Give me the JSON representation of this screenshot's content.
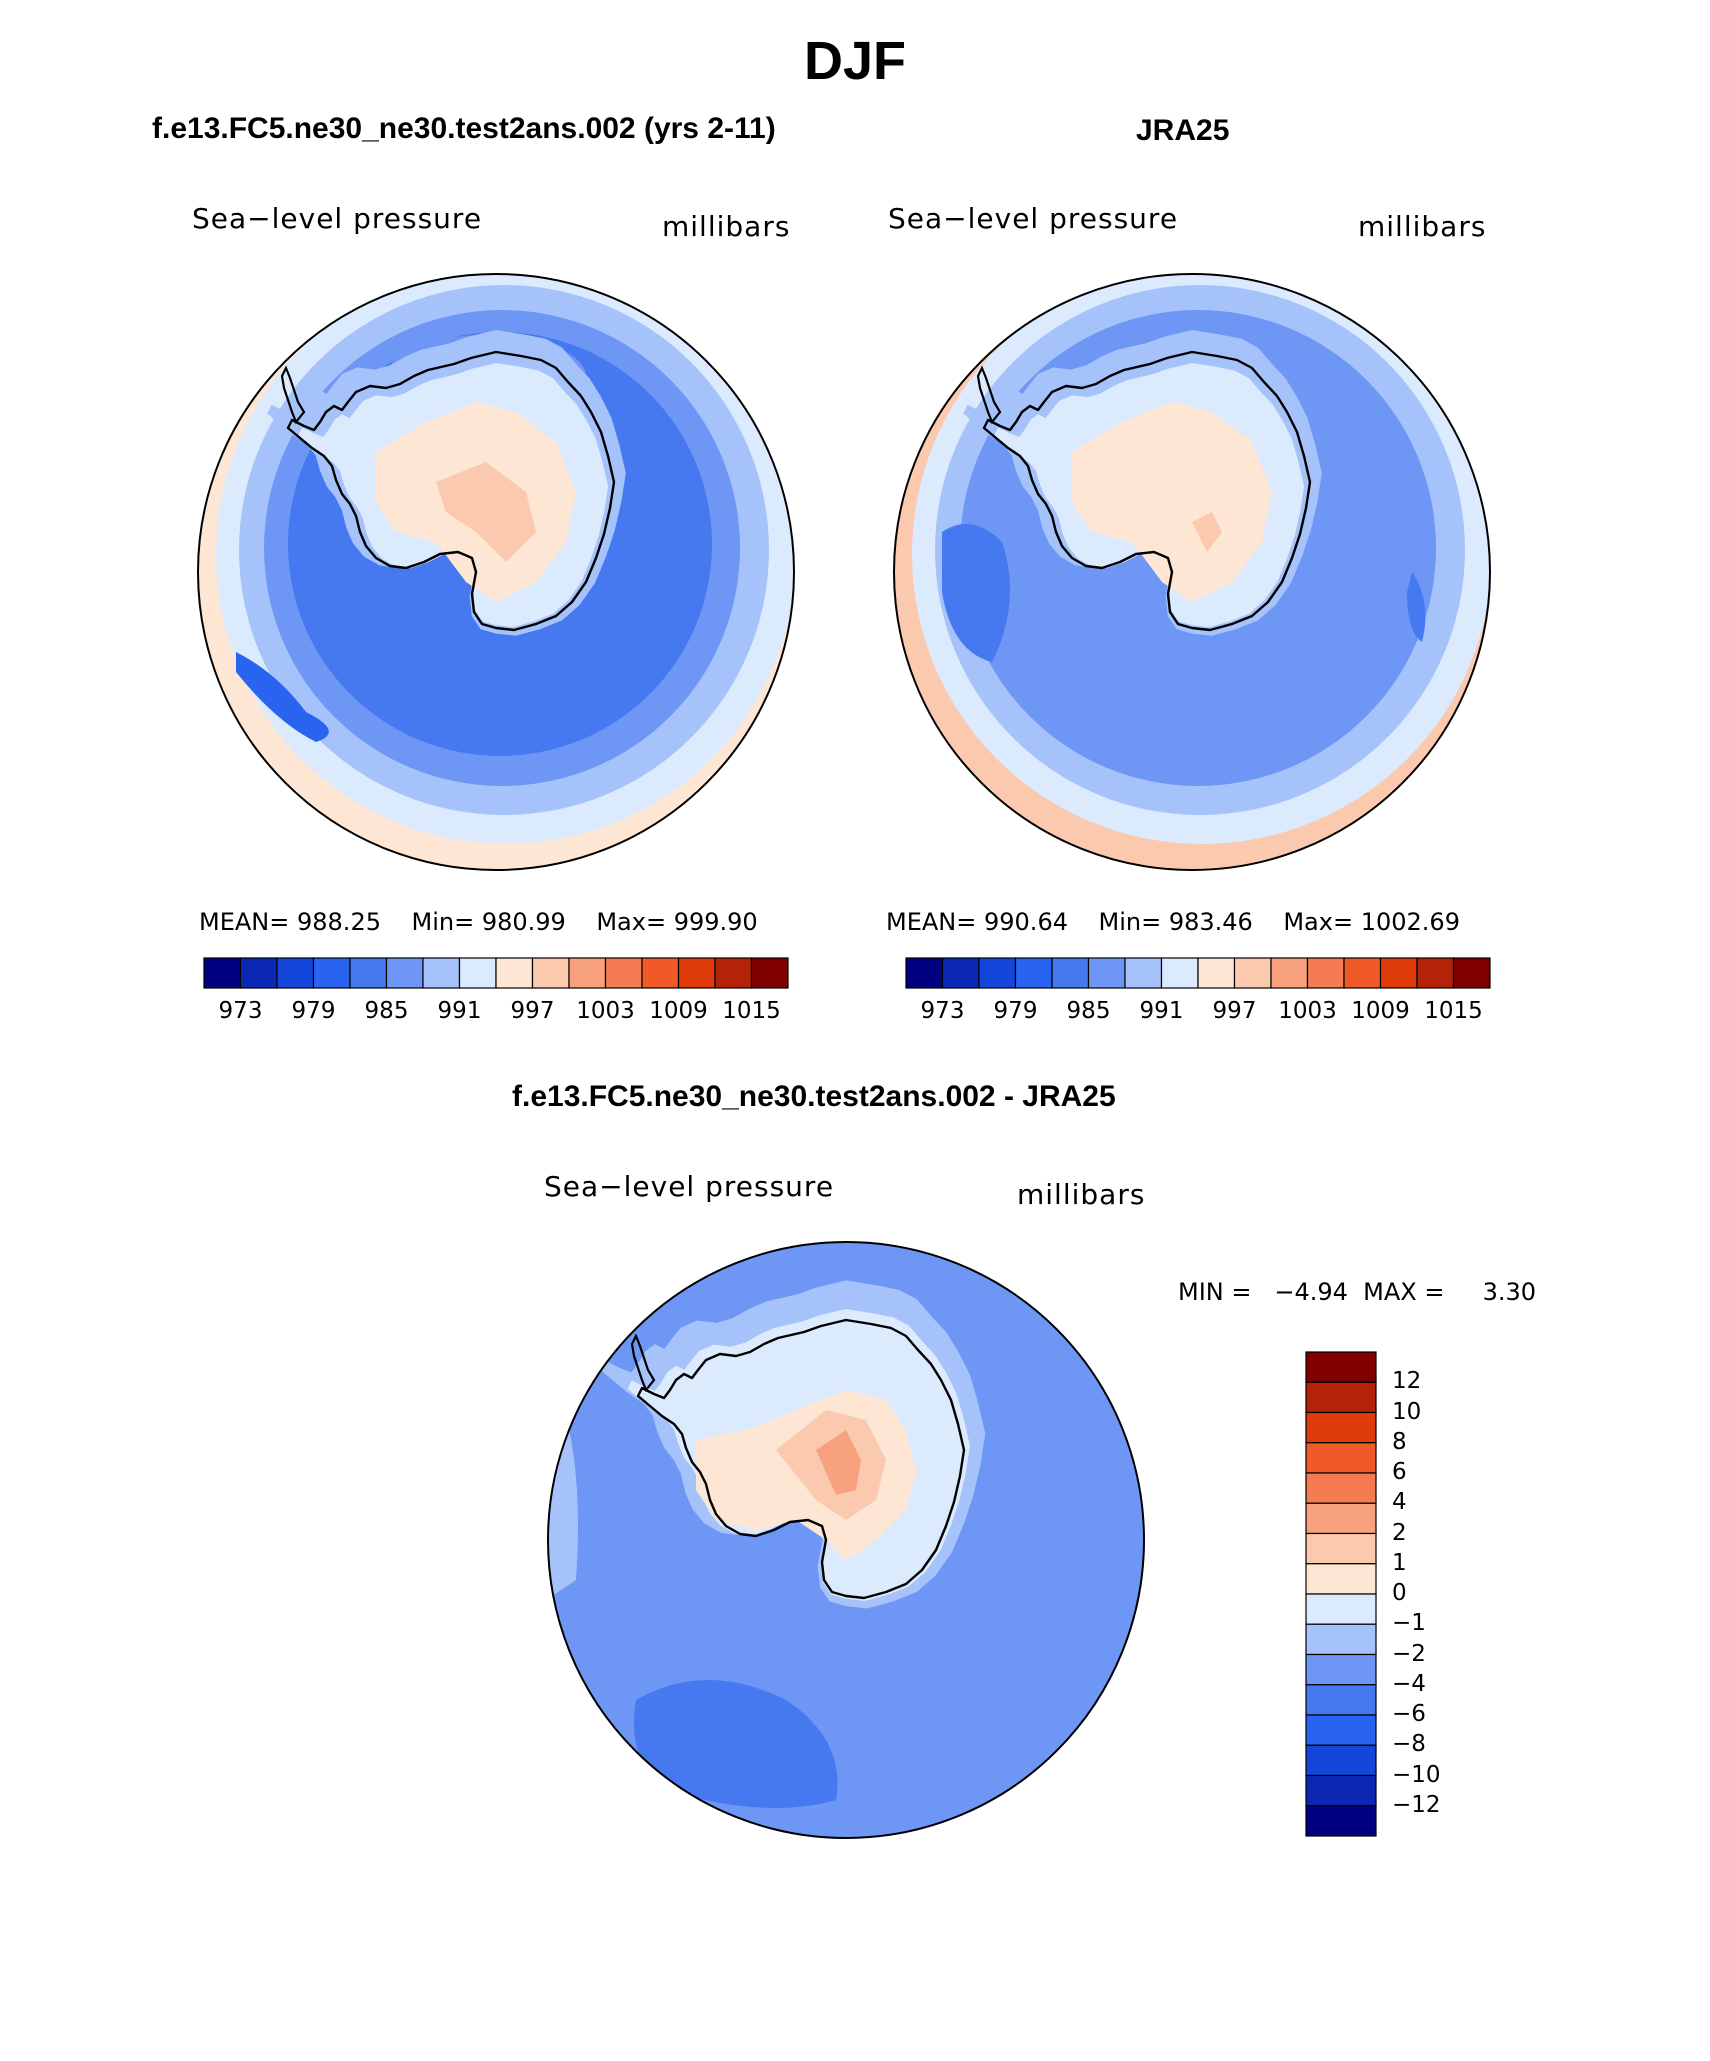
{
  "season": "DJF",
  "panels": [
    {
      "id": "model",
      "case_title": "f.e13.FC5.ne30_ne30.test2ans.002 (yrs 2-11)",
      "variable": "Sea−level pressure",
      "units": "millibars",
      "stats": {
        "mean_label": "MEAN=",
        "mean": "988.25",
        "min_label": "Min=",
        "min": "980.99",
        "max_label": "Max=",
        "max": "999.90"
      }
    },
    {
      "id": "obs",
      "case_title": "JRA25",
      "variable": "Sea−level pressure",
      "units": "millibars",
      "stats": {
        "mean_label": "MEAN=",
        "mean": "990.64",
        "min_label": "Min=",
        "min": "983.46",
        "max_label": "Max=",
        "max": "1002.69"
      }
    }
  ],
  "abs_colorbar": {
    "colors": [
      "#000080",
      "#0a28b4",
      "#1446dc",
      "#2864f0",
      "#4678f0",
      "#6e96f5",
      "#a5c3fa",
      "#dceafd",
      "#fde6d4",
      "#fbc9ae",
      "#f8a17f",
      "#f57c52",
      "#f05a28",
      "#e03c0a",
      "#b42308",
      "#800000"
    ],
    "labels": [
      "973",
      "979",
      "985",
      "991",
      "997",
      "1003",
      "1009",
      "1015"
    ]
  },
  "diff_panel": {
    "case_title": "f.e13.FC5.ne30_ne30.test2ans.002 - JRA25",
    "variable": "Sea−level pressure",
    "units": "millibars",
    "minmax_text": "MIN =   −4.94  MAX =     3.30"
  },
  "diff_colorbar": {
    "colors_top_to_bottom": [
      "#800000",
      "#b42308",
      "#e03c0a",
      "#f05a28",
      "#f57c52",
      "#f8a17f",
      "#fbc9ae",
      "#fde6d4",
      "#dceafd",
      "#a5c3fa",
      "#6e96f5",
      "#4678f0",
      "#2864f0",
      "#1446dc",
      "#0a28b4",
      "#000080"
    ],
    "labels_top_to_bottom": [
      "12",
      "10",
      "8",
      "6",
      "4",
      "2",
      "1",
      "0",
      "−1",
      "−2",
      "−4",
      "−6",
      "−8",
      "−10",
      "−12"
    ]
  },
  "map_fill_colors": {
    "model": {
      "outer": "#dceafd",
      "ring1": "#a5c3fa",
      "ring2": "#6e96f5",
      "ocean": "#4678f0",
      "low": "#2864f0",
      "coast1": "#a5c3fa",
      "coast2": "#dceafd",
      "plateau": "#fde6d4",
      "high": "#fbc9ae",
      "edge_warm": "#fde6d4"
    },
    "obs": {
      "outer": "#dceafd",
      "ring1": "#a5c3fa",
      "ring2": "#6e96f5",
      "ocean": "#6e96f5",
      "low": "#4678f0",
      "coast1": "#a5c3fa",
      "coast2": "#dceafd",
      "plateau": "#fde6d4",
      "high": "#fbc9ae",
      "edge_warm": "#fbc9ae"
    },
    "diff": {
      "ocean": "#6e96f5",
      "ring": "#a5c3fa",
      "coast": "#dceafd",
      "plateau": "#fde6d4",
      "high": "#fbc9ae",
      "peak": "#f8a17f",
      "low": "#4678f0"
    }
  }
}
